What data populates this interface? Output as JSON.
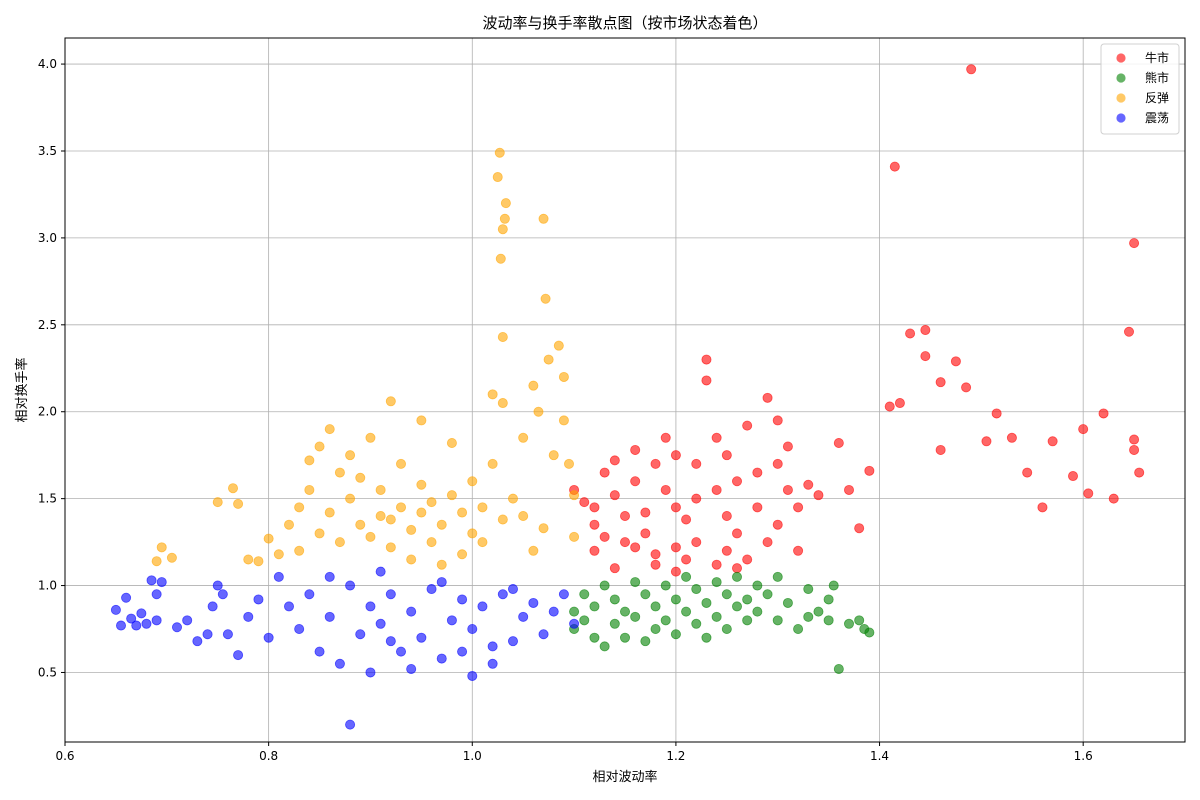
{
  "chart_data": {
    "type": "scatter",
    "title": "波动率与换手率散点图（按市场状态着色）",
    "xlabel": "相对波动率",
    "ylabel": "相对换手率",
    "xlim": [
      0.6,
      1.7
    ],
    "ylim": [
      0.1,
      4.15
    ],
    "xticks": [
      "0.6",
      "0.8",
      "1.0",
      "1.2",
      "1.4",
      "1.6"
    ],
    "yticks": [
      "0.5",
      "1.0",
      "1.5",
      "2.0",
      "2.5",
      "3.0",
      "3.5",
      "4.0"
    ],
    "grid": true,
    "legend_position": "top-right",
    "point_alpha": 0.6,
    "series": [
      {
        "name": "牛市",
        "color": "#ff0000",
        "points": [
          [
            1.1,
            1.55
          ],
          [
            1.11,
            1.48
          ],
          [
            1.12,
            1.45
          ],
          [
            1.12,
            1.35
          ],
          [
            1.13,
            1.28
          ],
          [
            1.13,
            1.65
          ],
          [
            1.14,
            1.72
          ],
          [
            1.14,
            1.52
          ],
          [
            1.15,
            1.4
          ],
          [
            1.15,
            1.25
          ],
          [
            1.16,
            1.78
          ],
          [
            1.16,
            1.6
          ],
          [
            1.17,
            1.42
          ],
          [
            1.17,
            1.3
          ],
          [
            1.18,
            1.18
          ],
          [
            1.18,
            1.7
          ],
          [
            1.19,
            1.85
          ],
          [
            1.19,
            1.55
          ],
          [
            1.2,
            1.75
          ],
          [
            1.2,
            1.45
          ],
          [
            1.2,
            1.22
          ],
          [
            1.21,
            1.38
          ],
          [
            1.21,
            1.15
          ],
          [
            1.22,
            1.7
          ],
          [
            1.22,
            1.5
          ],
          [
            1.23,
            2.3
          ],
          [
            1.23,
            2.18
          ],
          [
            1.24,
            1.85
          ],
          [
            1.24,
            1.55
          ],
          [
            1.25,
            1.2
          ],
          [
            1.25,
            1.4
          ],
          [
            1.25,
            1.75
          ],
          [
            1.26,
            1.6
          ],
          [
            1.26,
            1.3
          ],
          [
            1.27,
            1.92
          ],
          [
            1.27,
            1.15
          ],
          [
            1.28,
            1.45
          ],
          [
            1.28,
            1.65
          ],
          [
            1.29,
            2.08
          ],
          [
            1.29,
            1.25
          ],
          [
            1.3,
            1.95
          ],
          [
            1.3,
            1.7
          ],
          [
            1.3,
            1.35
          ],
          [
            1.31,
            1.8
          ],
          [
            1.31,
            1.55
          ],
          [
            1.32,
            1.45
          ],
          [
            1.32,
            1.2
          ],
          [
            1.33,
            1.58
          ],
          [
            1.34,
            1.52
          ],
          [
            1.36,
            1.82
          ],
          [
            1.37,
            1.55
          ],
          [
            1.38,
            1.33
          ],
          [
            1.39,
            1.66
          ],
          [
            1.41,
            2.03
          ],
          [
            1.42,
            2.05
          ],
          [
            1.415,
            3.41
          ],
          [
            1.43,
            2.45
          ],
          [
            1.445,
            2.47
          ],
          [
            1.445,
            2.32
          ],
          [
            1.46,
            2.17
          ],
          [
            1.46,
            1.78
          ],
          [
            1.475,
            2.29
          ],
          [
            1.485,
            2.14
          ],
          [
            1.49,
            3.97
          ],
          [
            1.505,
            1.83
          ],
          [
            1.515,
            1.99
          ],
          [
            1.53,
            1.85
          ],
          [
            1.545,
            1.65
          ],
          [
            1.56,
            1.45
          ],
          [
            1.57,
            1.83
          ],
          [
            1.59,
            1.63
          ],
          [
            1.6,
            1.9
          ],
          [
            1.605,
            1.53
          ],
          [
            1.62,
            1.99
          ],
          [
            1.63,
            1.5
          ],
          [
            1.645,
            2.46
          ],
          [
            1.65,
            2.97
          ],
          [
            1.65,
            1.84
          ],
          [
            1.65,
            1.78
          ],
          [
            1.655,
            1.65
          ],
          [
            1.12,
            1.2
          ],
          [
            1.14,
            1.1
          ],
          [
            1.16,
            1.22
          ],
          [
            1.18,
            1.12
          ],
          [
            1.2,
            1.08
          ],
          [
            1.22,
            1.25
          ],
          [
            1.24,
            1.12
          ],
          [
            1.26,
            1.1
          ]
        ]
      },
      {
        "name": "熊市",
        "color": "#008000",
        "points": [
          [
            1.1,
            0.85
          ],
          [
            1.1,
            0.75
          ],
          [
            1.11,
            0.95
          ],
          [
            1.11,
            0.8
          ],
          [
            1.12,
            0.7
          ],
          [
            1.12,
            0.88
          ],
          [
            1.13,
            1.0
          ],
          [
            1.13,
            0.65
          ],
          [
            1.14,
            0.92
          ],
          [
            1.14,
            0.78
          ],
          [
            1.15,
            0.85
          ],
          [
            1.15,
            0.7
          ],
          [
            1.16,
            1.02
          ],
          [
            1.16,
            0.82
          ],
          [
            1.17,
            0.95
          ],
          [
            1.17,
            0.68
          ],
          [
            1.18,
            0.88
          ],
          [
            1.18,
            0.75
          ],
          [
            1.19,
            1.0
          ],
          [
            1.19,
            0.8
          ],
          [
            1.2,
            0.92
          ],
          [
            1.2,
            0.72
          ],
          [
            1.21,
            1.05
          ],
          [
            1.21,
            0.85
          ],
          [
            1.22,
            0.98
          ],
          [
            1.22,
            0.78
          ],
          [
            1.23,
            0.9
          ],
          [
            1.23,
            0.7
          ],
          [
            1.24,
            1.02
          ],
          [
            1.24,
            0.82
          ],
          [
            1.25,
            0.95
          ],
          [
            1.25,
            0.75
          ],
          [
            1.26,
            0.88
          ],
          [
            1.26,
            1.05
          ],
          [
            1.27,
            0.8
          ],
          [
            1.27,
            0.92
          ],
          [
            1.28,
            1.0
          ],
          [
            1.28,
            0.85
          ],
          [
            1.29,
            0.95
          ],
          [
            1.3,
            0.8
          ],
          [
            1.3,
            1.05
          ],
          [
            1.31,
            0.9
          ],
          [
            1.32,
            0.75
          ],
          [
            1.33,
            0.82
          ],
          [
            1.34,
            0.85
          ],
          [
            1.35,
            0.92
          ],
          [
            1.355,
            1.0
          ],
          [
            1.36,
            0.52
          ],
          [
            1.37,
            0.78
          ],
          [
            1.38,
            0.8
          ],
          [
            1.385,
            0.75
          ],
          [
            1.39,
            0.73
          ],
          [
            1.35,
            0.8
          ],
          [
            1.33,
            0.98
          ]
        ]
      },
      {
        "name": "反弹",
        "color": "#ffa500",
        "points": [
          [
            0.69,
            1.14
          ],
          [
            0.695,
            1.22
          ],
          [
            0.705,
            1.16
          ],
          [
            0.75,
            1.48
          ],
          [
            0.765,
            1.56
          ],
          [
            0.77,
            1.47
          ],
          [
            0.78,
            1.15
          ],
          [
            0.79,
            1.14
          ],
          [
            0.8,
            1.27
          ],
          [
            0.81,
            1.18
          ],
          [
            0.82,
            1.35
          ],
          [
            0.83,
            1.45
          ],
          [
            0.83,
            1.2
          ],
          [
            0.84,
            1.55
          ],
          [
            0.84,
            1.72
          ],
          [
            0.85,
            1.8
          ],
          [
            0.85,
            1.3
          ],
          [
            0.86,
            1.9
          ],
          [
            0.86,
            1.42
          ],
          [
            0.87,
            1.65
          ],
          [
            0.87,
            1.25
          ],
          [
            0.88,
            1.5
          ],
          [
            0.88,
            1.75
          ],
          [
            0.89,
            1.35
          ],
          [
            0.89,
            1.62
          ],
          [
            0.9,
            1.85
          ],
          [
            0.9,
            1.28
          ],
          [
            0.91,
            1.55
          ],
          [
            0.91,
            1.4
          ],
          [
            0.92,
            2.06
          ],
          [
            0.92,
            1.22
          ],
          [
            0.93,
            1.7
          ],
          [
            0.93,
            1.45
          ],
          [
            0.94,
            1.32
          ],
          [
            0.95,
            1.95
          ],
          [
            0.95,
            1.58
          ],
          [
            0.96,
            1.48
          ],
          [
            0.96,
            1.25
          ],
          [
            0.97,
            1.35
          ],
          [
            0.98,
            1.82
          ],
          [
            0.98,
            1.52
          ],
          [
            0.99,
            1.42
          ],
          [
            1.0,
            1.6
          ],
          [
            1.0,
            1.3
          ],
          [
            1.01,
            1.45
          ],
          [
            1.02,
            2.1
          ],
          [
            1.02,
            1.7
          ],
          [
            1.025,
            3.35
          ],
          [
            1.027,
            3.49
          ],
          [
            1.028,
            2.88
          ],
          [
            1.03,
            2.43
          ],
          [
            1.03,
            3.05
          ],
          [
            1.032,
            3.11
          ],
          [
            1.033,
            3.2
          ],
          [
            1.03,
            2.05
          ],
          [
            1.04,
            1.5
          ],
          [
            1.05,
            1.85
          ],
          [
            1.06,
            2.15
          ],
          [
            1.065,
            2.0
          ],
          [
            1.07,
            3.11
          ],
          [
            1.072,
            2.65
          ],
          [
            1.075,
            2.3
          ],
          [
            1.08,
            1.75
          ],
          [
            1.085,
            2.38
          ],
          [
            1.09,
            2.2
          ],
          [
            1.09,
            1.95
          ],
          [
            1.095,
            1.7
          ],
          [
            1.1,
            1.52
          ],
          [
            1.1,
            1.28
          ],
          [
            1.05,
            1.4
          ],
          [
            1.06,
            1.2
          ],
          [
            1.07,
            1.33
          ],
          [
            0.94,
            1.15
          ],
          [
            0.97,
            1.12
          ],
          [
            0.99,
            1.18
          ],
          [
            0.92,
            1.38
          ],
          [
            0.95,
            1.42
          ],
          [
            1.01,
            1.25
          ],
          [
            1.03,
            1.38
          ]
        ]
      },
      {
        "name": "震荡",
        "color": "#0000ff",
        "points": [
          [
            0.65,
            0.86
          ],
          [
            0.655,
            0.77
          ],
          [
            0.66,
            0.93
          ],
          [
            0.665,
            0.81
          ],
          [
            0.67,
            0.77
          ],
          [
            0.675,
            0.84
          ],
          [
            0.68,
            0.78
          ],
          [
            0.685,
            1.03
          ],
          [
            0.69,
            0.8
          ],
          [
            0.69,
            0.95
          ],
          [
            0.695,
            1.02
          ],
          [
            0.71,
            0.76
          ],
          [
            0.72,
            0.8
          ],
          [
            0.73,
            0.68
          ],
          [
            0.74,
            0.72
          ],
          [
            0.745,
            0.88
          ],
          [
            0.75,
            1.0
          ],
          [
            0.755,
            0.95
          ],
          [
            0.76,
            0.72
          ],
          [
            0.77,
            0.6
          ],
          [
            0.78,
            0.82
          ],
          [
            0.79,
            0.92
          ],
          [
            0.8,
            0.7
          ],
          [
            0.81,
            1.05
          ],
          [
            0.82,
            0.88
          ],
          [
            0.83,
            0.75
          ],
          [
            0.84,
            0.95
          ],
          [
            0.85,
            0.62
          ],
          [
            0.86,
            0.82
          ],
          [
            0.87,
            0.55
          ],
          [
            0.88,
            1.0
          ],
          [
            0.88,
            0.2
          ],
          [
            0.89,
            0.72
          ],
          [
            0.9,
            0.88
          ],
          [
            0.9,
            0.5
          ],
          [
            0.91,
            0.78
          ],
          [
            0.92,
            0.95
          ],
          [
            0.93,
            0.62
          ],
          [
            0.94,
            0.85
          ],
          [
            0.95,
            0.7
          ],
          [
            0.96,
            0.98
          ],
          [
            0.97,
            0.58
          ],
          [
            0.98,
            0.8
          ],
          [
            0.99,
            0.92
          ],
          [
            1.0,
            0.48
          ],
          [
            1.0,
            0.75
          ],
          [
            1.01,
            0.88
          ],
          [
            1.02,
            0.55
          ],
          [
            1.03,
            0.95
          ],
          [
            1.04,
            0.68
          ],
          [
            1.05,
            0.82
          ],
          [
            1.06,
            0.9
          ],
          [
            1.07,
            0.72
          ],
          [
            1.08,
            0.85
          ],
          [
            1.09,
            0.95
          ],
          [
            1.1,
            0.78
          ],
          [
            0.86,
            1.05
          ],
          [
            0.92,
            0.68
          ],
          [
            0.97,
            1.02
          ],
          [
            1.02,
            0.65
          ],
          [
            0.94,
            0.52
          ],
          [
            0.99,
            0.62
          ],
          [
            1.04,
            0.98
          ],
          [
            0.91,
            1.08
          ]
        ]
      }
    ]
  }
}
